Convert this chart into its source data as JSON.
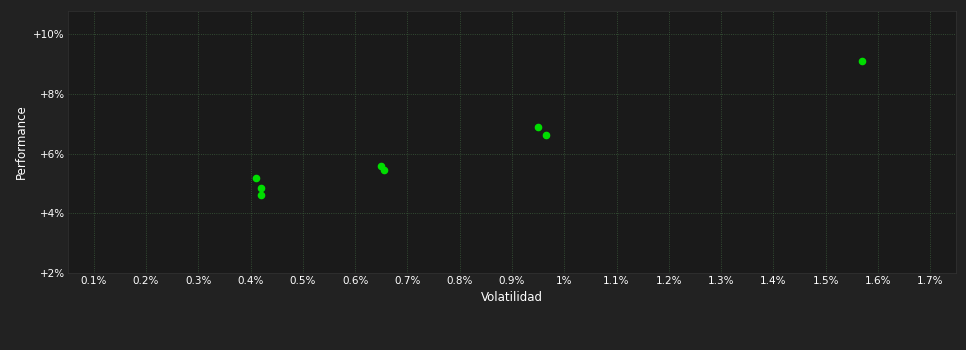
{
  "points_x": [
    0.0041,
    0.0042,
    0.0042,
    0.0065,
    0.00655,
    0.0095,
    0.00965,
    0.0157
  ],
  "points_y": [
    5.2,
    4.85,
    4.6,
    5.58,
    5.45,
    6.88,
    6.62,
    9.1
  ],
  "point_color": "#00dd00",
  "point_size": 20,
  "bg_outer": "#222222",
  "bg_plot": "#1a1a1a",
  "grid_color": "#3a5a3a",
  "text_color": "#ffffff",
  "xlabel": "Volatilidad",
  "ylabel": "Performance",
  "xlim": [
    0.0005,
    0.0175
  ],
  "ylim": [
    2.0,
    10.8
  ],
  "xticks": [
    0.001,
    0.002,
    0.003,
    0.004,
    0.005,
    0.006,
    0.007,
    0.008,
    0.009,
    0.01,
    0.011,
    0.012,
    0.013,
    0.014,
    0.015,
    0.016,
    0.017
  ],
  "xtick_labels": [
    "0.1%",
    "0.2%",
    "0.3%",
    "0.4%",
    "0.5%",
    "0.6%",
    "0.7%",
    "0.8%",
    "0.9%",
    "1%",
    "1.1%",
    "1.2%",
    "1.3%",
    "1.4%",
    "1.5%",
    "1.6%",
    "1.7%"
  ],
  "yticks": [
    2.0,
    4.0,
    6.0,
    8.0,
    10.0
  ],
  "ytick_labels": [
    "+2%",
    "+4%",
    "+6%",
    "+8%",
    "+10%"
  ],
  "figsize": [
    9.66,
    3.5
  ],
  "dpi": 100
}
